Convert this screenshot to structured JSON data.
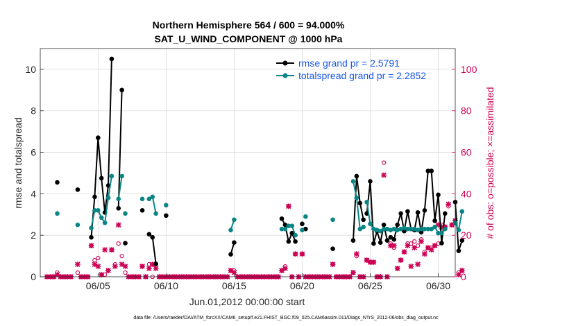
{
  "chart_data": {
    "type": "line",
    "title": "Northern Hemisphere 564 / 600 = 94.000%",
    "subtitle": "SAT_U_WIND_COMPONENT @ 1000 hPa",
    "xlabel": "Jun.01,2012 00:00:00 start",
    "ylabel_left": "rmse and totalspread",
    "ylabel_right": "# of obs: o=possible; ×=assimilated",
    "footnote": "data file: /Users/raeder/DAI/ATM_forcXX/CAM6_setup/f.e21.FHIST_BGC.f09_025.CAM6assim.011/Diags_NTrS_2012-06/obs_diag_output.nc",
    "x_range": [
      0.75,
      31.25
    ],
    "ylim_left": [
      0,
      11
    ],
    "ylim_right": [
      0,
      110
    ],
    "x_ticks": [
      {
        "value": 5,
        "label": "06/05"
      },
      {
        "value": 10,
        "label": "06/10"
      },
      {
        "value": 15,
        "label": "06/15"
      },
      {
        "value": 20,
        "label": "06/20"
      },
      {
        "value": 25,
        "label": "06/25"
      },
      {
        "value": 30,
        "label": "06/30"
      }
    ],
    "y_ticks_left": [
      0,
      2,
      4,
      6,
      8,
      10
    ],
    "y_ticks_right": [
      0,
      20,
      40,
      60,
      80,
      100
    ],
    "colors": {
      "rmse": "#000000",
      "spread": "#0a8585",
      "obs": "#cc0055",
      "legend_text": "#1a56e8"
    },
    "legend_position": "top-right",
    "series": [
      {
        "name": "rmse",
        "legend": "rmse grand pr = 2.5791",
        "points": [
          [
            2.0,
            4.55
          ],
          null,
          [
            3.5,
            4.2
          ],
          null,
          [
            4.5,
            1.9
          ],
          [
            4.75,
            3.85
          ],
          [
            5.0,
            6.7
          ],
          [
            5.25,
            4.75
          ],
          [
            5.5,
            3.1
          ],
          [
            5.75,
            4.4
          ],
          [
            6.0,
            10.5
          ],
          null,
          [
            6.5,
            3.3
          ],
          [
            6.75,
            9.0
          ],
          null,
          [
            7.0,
            1.62
          ],
          null,
          [
            8.25,
            3.2
          ],
          null,
          [
            8.75,
            2.05
          ],
          [
            9.0,
            1.9
          ],
          [
            9.25,
            0.62
          ],
          null,
          [
            10.0,
            2.95
          ],
          null,
          [
            14.75,
            1.08
          ],
          [
            15.0,
            1.65
          ],
          null,
          [
            18.5,
            2.8
          ],
          [
            18.75,
            2.5
          ],
          [
            19.0,
            1.7
          ],
          [
            19.25,
            2.1
          ],
          [
            19.5,
            1.7
          ],
          null,
          [
            20.0,
            2.55
          ],
          null,
          [
            20.25,
            2.3
          ],
          null,
          [
            22.25,
            1.35
          ],
          null,
          [
            23.75,
            1.75
          ],
          [
            24.0,
            4.85
          ],
          [
            24.25,
            3.55
          ],
          [
            24.5,
            2.75
          ],
          null,
          [
            24.75,
            3.05
          ],
          [
            25.0,
            4.6
          ],
          [
            25.25,
            1.6
          ],
          [
            25.5,
            2.2
          ],
          [
            25.75,
            1.65
          ],
          [
            26.0,
            2.5
          ],
          [
            26.25,
            1.75
          ],
          [
            26.5,
            1.9
          ],
          [
            26.75,
            1.8
          ],
          [
            27.0,
            2.5
          ],
          [
            27.25,
            3.05
          ],
          [
            27.5,
            2.2
          ],
          [
            27.75,
            3.15
          ],
          [
            28.0,
            2.3
          ],
          [
            28.25,
            2.25
          ],
          [
            28.5,
            3.1
          ],
          [
            28.75,
            2.15
          ],
          [
            29.0,
            3.2
          ],
          [
            29.25,
            5.1
          ],
          [
            29.5,
            5.1
          ],
          [
            29.75,
            2.7
          ],
          [
            30.0,
            3.95
          ],
          [
            30.25,
            1.62
          ],
          [
            30.5,
            3.05
          ],
          null,
          [
            31.25,
            3.6
          ],
          [
            31.5,
            1.25
          ],
          [
            31.75,
            1.75
          ]
        ]
      },
      {
        "name": "totalspread",
        "legend": "totalspread grand pr = 2.2852",
        "points": [
          [
            2.0,
            3.05
          ],
          null,
          [
            3.5,
            2.5
          ],
          null,
          [
            4.5,
            2.35
          ],
          [
            4.75,
            3.2
          ],
          [
            5.0,
            3.2
          ],
          [
            5.25,
            2.85
          ],
          [
            5.5,
            2.6
          ],
          [
            5.75,
            3.8
          ],
          [
            6.0,
            4.85
          ],
          null,
          [
            6.5,
            3.75
          ],
          [
            6.75,
            4.85
          ],
          null,
          [
            7.0,
            3.05
          ],
          null,
          [
            8.25,
            3.75
          ],
          null,
          [
            8.75,
            3.75
          ],
          [
            9.0,
            3.85
          ],
          [
            9.25,
            3.05
          ],
          null,
          [
            10.0,
            3.45
          ],
          null,
          [
            14.75,
            2.25
          ],
          [
            15.0,
            2.75
          ],
          null,
          [
            18.5,
            2.3
          ],
          [
            18.75,
            2.3
          ],
          [
            19.0,
            2.45
          ],
          [
            19.25,
            2.45
          ],
          [
            19.5,
            2.0
          ],
          null,
          [
            20.0,
            2.25
          ],
          null,
          [
            20.25,
            2.9
          ],
          null,
          [
            22.25,
            2.75
          ],
          null,
          [
            23.75,
            4.6
          ],
          [
            24.0,
            3.8
          ],
          [
            24.25,
            2.3
          ],
          [
            24.5,
            2.4
          ],
          null,
          [
            24.75,
            3.6
          ],
          [
            25.0,
            2.55
          ],
          [
            25.25,
            2.3
          ],
          [
            25.5,
            2.25
          ],
          [
            25.75,
            2.2
          ],
          [
            26.0,
            2.3
          ],
          [
            26.25,
            2.3
          ],
          [
            26.5,
            2.25
          ],
          [
            26.75,
            2.3
          ],
          [
            27.0,
            2.25
          ],
          [
            27.25,
            2.3
          ],
          [
            27.5,
            2.35
          ],
          [
            27.75,
            2.3
          ],
          [
            28.0,
            2.3
          ],
          [
            28.25,
            2.3
          ],
          [
            28.5,
            2.25
          ],
          [
            28.75,
            2.3
          ],
          [
            29.0,
            2.3
          ],
          [
            29.25,
            2.3
          ],
          [
            29.5,
            2.3
          ],
          [
            29.75,
            2.4
          ],
          [
            30.0,
            2.1
          ],
          [
            30.25,
            2.1
          ],
          [
            30.5,
            2.3
          ],
          null,
          [
            31.25,
            2.6
          ],
          [
            31.5,
            2.25
          ],
          [
            31.75,
            3.15
          ]
        ]
      }
    ],
    "obs_possible": [
      [
        1.25,
        0
      ],
      [
        1.5,
        0
      ],
      [
        1.75,
        0
      ],
      [
        2.0,
        2
      ],
      [
        2.25,
        0
      ],
      [
        2.5,
        0
      ],
      [
        2.75,
        0
      ],
      [
        3.0,
        0
      ],
      [
        3.5,
        2
      ],
      [
        3.75,
        0
      ],
      [
        4.0,
        0
      ],
      [
        4.25,
        0
      ],
      [
        4.5,
        15
      ],
      [
        4.75,
        8
      ],
      [
        5.0,
        9
      ],
      [
        5.25,
        1
      ],
      [
        5.5,
        1
      ],
      [
        5.75,
        3
      ],
      [
        6.0,
        13
      ],
      [
        6.25,
        6
      ],
      [
        6.5,
        16
      ],
      [
        6.75,
        10
      ],
      [
        7.0,
        2
      ],
      [
        7.25,
        0
      ],
      [
        7.5,
        0
      ],
      [
        7.75,
        0
      ],
      [
        8.0,
        0
      ],
      [
        8.25,
        5
      ],
      [
        8.5,
        0
      ],
      [
        8.75,
        6
      ],
      [
        9.0,
        0
      ],
      [
        9.25,
        6
      ],
      [
        9.5,
        0
      ],
      [
        9.75,
        0
      ],
      [
        10.0,
        0
      ],
      [
        10.25,
        0
      ],
      [
        10.5,
        0
      ],
      [
        10.75,
        0
      ],
      [
        11.0,
        0
      ],
      [
        11.25,
        0
      ],
      [
        11.5,
        0
      ],
      [
        11.75,
        0
      ],
      [
        12.0,
        0
      ],
      [
        12.25,
        0
      ],
      [
        12.5,
        0
      ],
      [
        12.75,
        0
      ],
      [
        13.0,
        0
      ],
      [
        13.25,
        0
      ],
      [
        13.5,
        0
      ],
      [
        13.75,
        0
      ],
      [
        14.0,
        0
      ],
      [
        14.25,
        0
      ],
      [
        14.5,
        0
      ],
      [
        14.75,
        3
      ],
      [
        15.0,
        3
      ],
      [
        15.25,
        0
      ],
      [
        15.5,
        0
      ],
      [
        15.75,
        0
      ],
      [
        16.0,
        0
      ],
      [
        16.25,
        0
      ],
      [
        16.5,
        0
      ],
      [
        16.75,
        0
      ],
      [
        17.0,
        0
      ],
      [
        17.25,
        0
      ],
      [
        17.5,
        0
      ],
      [
        17.75,
        0
      ],
      [
        18.0,
        0
      ],
      [
        18.25,
        0
      ],
      [
        18.5,
        3
      ],
      [
        18.75,
        5
      ],
      [
        19.0,
        34
      ],
      [
        19.25,
        0
      ],
      [
        19.5,
        11
      ],
      [
        19.75,
        0
      ],
      [
        20.0,
        11
      ],
      [
        20.25,
        0
      ],
      [
        20.5,
        0
      ],
      [
        20.75,
        0
      ],
      [
        21.0,
        0
      ],
      [
        21.25,
        0
      ],
      [
        21.5,
        0
      ],
      [
        21.75,
        0
      ],
      [
        22.0,
        0
      ],
      [
        22.25,
        6
      ],
      [
        22.5,
        0
      ],
      [
        22.75,
        0
      ],
      [
        23.0,
        0
      ],
      [
        23.25,
        0
      ],
      [
        23.5,
        0
      ],
      [
        23.75,
        2
      ],
      [
        24.0,
        10
      ],
      [
        24.25,
        0
      ],
      [
        24.5,
        0
      ],
      [
        24.75,
        8
      ],
      [
        25.0,
        7
      ],
      [
        25.25,
        7
      ],
      [
        25.5,
        0
      ],
      [
        25.75,
        0
      ],
      [
        26.0,
        55
      ],
      [
        26.25,
        0
      ],
      [
        26.5,
        16
      ],
      [
        26.75,
        14
      ],
      [
        27.0,
        4
      ],
      [
        27.25,
        8
      ],
      [
        27.5,
        12
      ],
      [
        27.75,
        16
      ],
      [
        28.0,
        16
      ],
      [
        28.25,
        17
      ],
      [
        28.5,
        15
      ],
      [
        28.75,
        18
      ],
      [
        29.0,
        12
      ],
      [
        29.25,
        14
      ],
      [
        29.5,
        14
      ],
      [
        29.75,
        15
      ],
      [
        30.0,
        16
      ],
      [
        30.25,
        25
      ],
      [
        30.5,
        24
      ],
      [
        30.75,
        34
      ],
      [
        31.0,
        25
      ],
      [
        31.25,
        27
      ],
      [
        31.5,
        2
      ],
      [
        31.75,
        3
      ]
    ],
    "obs_assimilated": [
      [
        1.25,
        0
      ],
      [
        1.5,
        0
      ],
      [
        1.75,
        0
      ],
      [
        2.0,
        1
      ],
      [
        2.25,
        0
      ],
      [
        2.5,
        0
      ],
      [
        2.75,
        0
      ],
      [
        3.0,
        0
      ],
      [
        3.5,
        6
      ],
      [
        3.75,
        0
      ],
      [
        4.0,
        0
      ],
      [
        4.25,
        0
      ],
      [
        4.5,
        15
      ],
      [
        4.75,
        6
      ],
      [
        5.0,
        5
      ],
      [
        5.25,
        1
      ],
      [
        5.5,
        13
      ],
      [
        5.75,
        3
      ],
      [
        6.0,
        13
      ],
      [
        6.25,
        5
      ],
      [
        6.5,
        25
      ],
      [
        6.75,
        6
      ],
      [
        7.0,
        5
      ],
      [
        7.25,
        0
      ],
      [
        7.5,
        0
      ],
      [
        7.75,
        0
      ],
      [
        8.0,
        0
      ],
      [
        8.25,
        5
      ],
      [
        8.5,
        0
      ],
      [
        8.75,
        4
      ],
      [
        9.0,
        6
      ],
      [
        9.25,
        4
      ],
      [
        9.5,
        0
      ],
      [
        9.75,
        0
      ],
      [
        10.0,
        0
      ],
      [
        10.25,
        0
      ],
      [
        10.5,
        0
      ],
      [
        10.75,
        0
      ],
      [
        11.0,
        0
      ],
      [
        11.25,
        0
      ],
      [
        11.5,
        0
      ],
      [
        11.75,
        0
      ],
      [
        12.0,
        0
      ],
      [
        12.25,
        0
      ],
      [
        12.5,
        0
      ],
      [
        12.75,
        0
      ],
      [
        13.0,
        0
      ],
      [
        13.25,
        0
      ],
      [
        13.5,
        0
      ],
      [
        13.75,
        0
      ],
      [
        14.0,
        0
      ],
      [
        14.25,
        0
      ],
      [
        14.5,
        0
      ],
      [
        14.75,
        3
      ],
      [
        15.0,
        2
      ],
      [
        15.25,
        0
      ],
      [
        15.5,
        0
      ],
      [
        15.75,
        0
      ],
      [
        16.0,
        0
      ],
      [
        16.25,
        0
      ],
      [
        16.5,
        0
      ],
      [
        16.75,
        0
      ],
      [
        17.0,
        0
      ],
      [
        17.25,
        0
      ],
      [
        17.5,
        0
      ],
      [
        17.75,
        0
      ],
      [
        18.0,
        0
      ],
      [
        18.25,
        0
      ],
      [
        18.5,
        3
      ],
      [
        18.75,
        4
      ],
      [
        19.0,
        34
      ],
      [
        19.25,
        0
      ],
      [
        19.5,
        11
      ],
      [
        19.75,
        0
      ],
      [
        20.0,
        11
      ],
      [
        20.25,
        0
      ],
      [
        20.5,
        0
      ],
      [
        20.75,
        0
      ],
      [
        21.0,
        0
      ],
      [
        21.25,
        0
      ],
      [
        21.5,
        0
      ],
      [
        21.75,
        0
      ],
      [
        22.0,
        0
      ],
      [
        22.25,
        6
      ],
      [
        22.5,
        0
      ],
      [
        22.75,
        0
      ],
      [
        23.0,
        0
      ],
      [
        23.25,
        0
      ],
      [
        23.5,
        0
      ],
      [
        23.75,
        2
      ],
      [
        24.0,
        11
      ],
      [
        24.25,
        0
      ],
      [
        24.5,
        0
      ],
      [
        24.75,
        8
      ],
      [
        25.0,
        7
      ],
      [
        25.25,
        7
      ],
      [
        25.5,
        0
      ],
      [
        25.75,
        0
      ],
      [
        26.0,
        49
      ],
      [
        26.25,
        0
      ],
      [
        26.5,
        15
      ],
      [
        26.75,
        15
      ],
      [
        27.0,
        4
      ],
      [
        27.25,
        8
      ],
      [
        27.5,
        12
      ],
      [
        27.75,
        15
      ],
      [
        28.0,
        5
      ],
      [
        28.25,
        14
      ],
      [
        28.5,
        6
      ],
      [
        28.75,
        17
      ],
      [
        29.0,
        11
      ],
      [
        29.25,
        14
      ],
      [
        29.5,
        13
      ],
      [
        29.75,
        15
      ],
      [
        30.0,
        25
      ],
      [
        30.25,
        24
      ],
      [
        30.5,
        24
      ],
      [
        30.75,
        35
      ],
      [
        31.0,
        25
      ],
      [
        31.25,
        27
      ],
      [
        31.5,
        1
      ],
      [
        31.75,
        3
      ]
    ]
  }
}
